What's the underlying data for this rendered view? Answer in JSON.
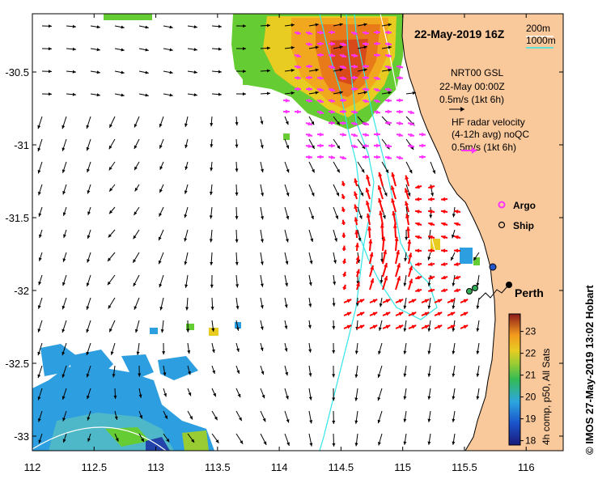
{
  "map": {
    "title": "22-May-2019 16Z",
    "place_label": "Perth",
    "credit": "© IMOS 27-May-2019 13:02 Hobart",
    "x_ticks": [
      "112",
      "112.5",
      "113",
      "113.5",
      "114",
      "114.5",
      "115",
      "115.5",
      "116"
    ],
    "y_ticks": [
      "-30.5",
      "-31",
      "-31.5",
      "-32",
      "-32.5",
      "-33"
    ],
    "x_tick_values": [
      112,
      112.5,
      113,
      113.5,
      114,
      114.5,
      115,
      115.5,
      116
    ],
    "y_tick_values": [
      -30.5,
      -31,
      -31.5,
      -32,
      -32.5,
      -33
    ],
    "lon_range": [
      112,
      116.3
    ],
    "lat_range": [
      -33.1,
      -30.1
    ]
  },
  "isobaths": {
    "line1": "200m",
    "line2": "1000m",
    "color_200m": "#ffffff",
    "color_1000m": "#33e6e6"
  },
  "legend": {
    "model_name": "NRT00 GSL",
    "model_date": "22-May 00:00Z",
    "model_scale": "0.5m/s (1kt 6h)",
    "radar_title": "HF radar velocity",
    "radar_avg": "(4-12h avg) noQC",
    "radar_scale": "0.5m/s (1kt 6h)",
    "argo_label": "Argo",
    "ship_label": "Ship",
    "model_color": "#000000",
    "radar_color_north": "#ff33ff",
    "radar_color_south": "#ff0000",
    "argo_color": "#ff33ff"
  },
  "colorbar": {
    "label": "4h comp, p50, All Sats",
    "ticks": [
      "18",
      "19",
      "20",
      "21",
      "22",
      "23"
    ],
    "tick_values": [
      18,
      19,
      20,
      21,
      22,
      23
    ],
    "range": [
      17.8,
      23.8
    ]
  },
  "colors": {
    "land": "#f9c89b",
    "ocean": "#ffffff"
  }
}
